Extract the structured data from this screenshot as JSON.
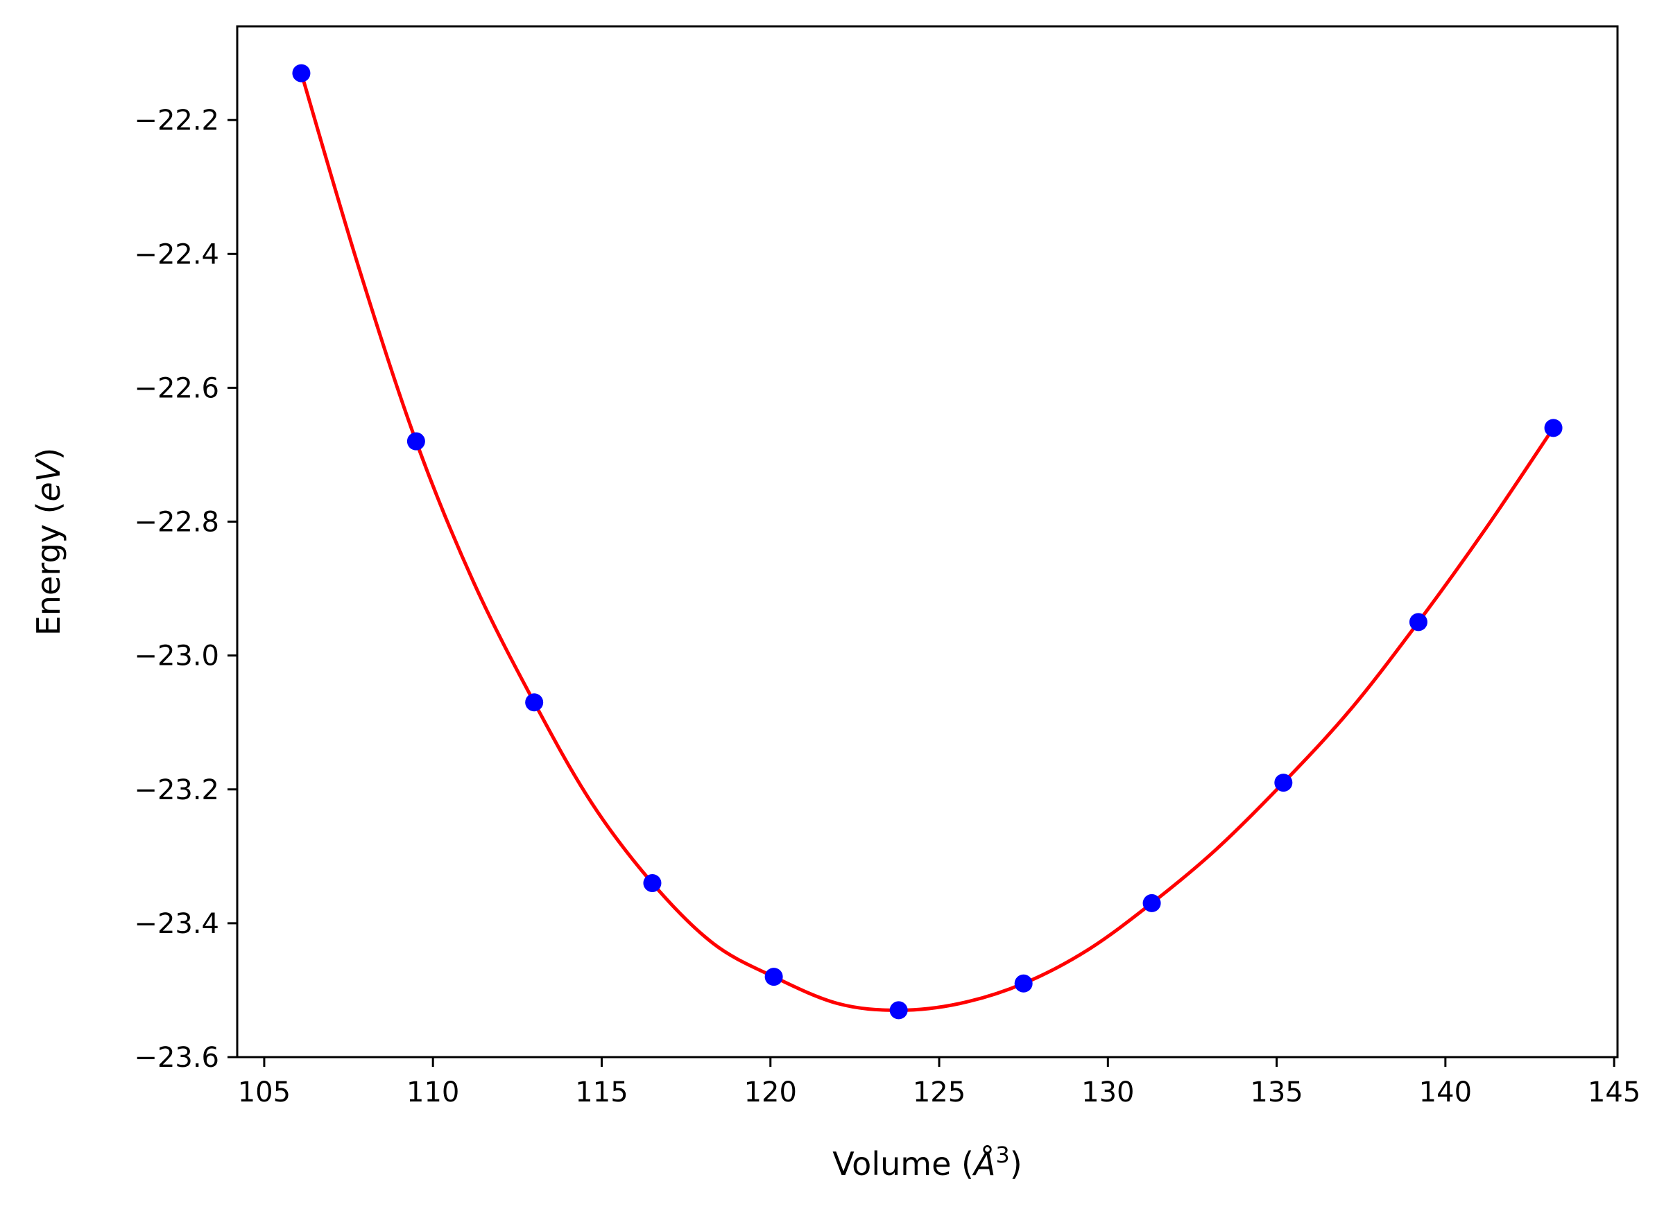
{
  "chart_data": {
    "type": "scatter",
    "title": "",
    "xlabel": {
      "prefix": "Volume (",
      "symbol": "Å",
      "sup": "3",
      "suffix": ")"
    },
    "ylabel": {
      "prefix": "Energy (",
      "italic": "eV",
      "suffix": ")"
    },
    "xlim": [
      104.2,
      145.1
    ],
    "ylim": [
      -23.6,
      -22.06
    ],
    "xticks": [
      105,
      110,
      115,
      120,
      125,
      130,
      135,
      140,
      145
    ],
    "yticks": [
      -22.2,
      -22.4,
      -22.6,
      -22.8,
      -23.0,
      -23.2,
      -23.4,
      -23.6
    ],
    "xtick_labels": [
      "105",
      "110",
      "115",
      "120",
      "125",
      "130",
      "135",
      "140",
      "145"
    ],
    "ytick_labels": [
      "−22.2",
      "−22.4",
      "−22.6",
      "−22.8",
      "−23.0",
      "−23.2",
      "−23.4",
      "−23.6"
    ],
    "grid": false,
    "series": [
      {
        "type": "scatter",
        "color": "#0000ff",
        "x": [
          106.1,
          109.5,
          113.0,
          116.5,
          120.1,
          123.8,
          127.5,
          131.3,
          135.2,
          139.2,
          143.2
        ],
        "y": [
          -22.13,
          -22.68,
          -23.07,
          -23.34,
          -23.48,
          -23.53,
          -23.49,
          -23.37,
          -23.19,
          -22.95,
          -22.66
        ]
      },
      {
        "type": "line",
        "color": "#ff0000",
        "x": [
          106.1,
          107.8,
          109.5,
          111.2,
          113.0,
          114.7,
          116.5,
          118.3,
          120.1,
          122.0,
          123.8,
          125.6,
          127.5,
          129.4,
          131.3,
          133.2,
          135.2,
          137.2,
          139.2,
          141.2,
          143.2
        ],
        "y": [
          -22.13,
          -22.42,
          -22.68,
          -22.89,
          -23.07,
          -23.22,
          -23.34,
          -23.43,
          -23.48,
          -23.52,
          -23.53,
          -23.52,
          -23.49,
          -23.44,
          -23.37,
          -23.29,
          -23.19,
          -23.08,
          -22.95,
          -22.81,
          -22.66
        ]
      }
    ]
  }
}
